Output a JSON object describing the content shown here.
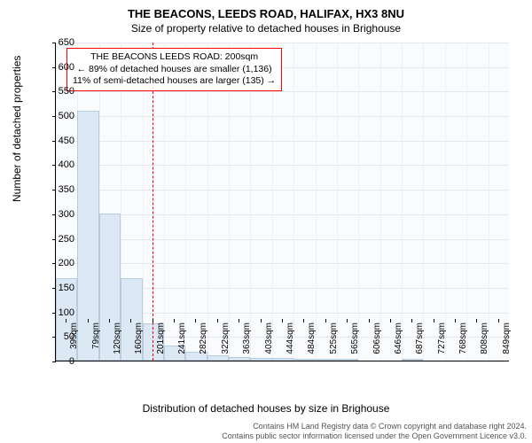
{
  "title_main": "THE BEACONS, LEEDS ROAD, HALIFAX, HX3 8NU",
  "title_sub": "Size of property relative to detached houses in Brighouse",
  "ylabel": "Number of detached properties",
  "xlabel": "Distribution of detached houses by size in Brighouse",
  "chart": {
    "type": "histogram",
    "background_color": "#fafbfd",
    "grid_color": "#e5e7eb",
    "bar_fill": "#dde8f5",
    "bar_border": "#b8cce0",
    "marker_color": "#ff0000",
    "ylim": [
      0,
      650
    ],
    "ytick_step": 50,
    "xticks": [
      "39sqm",
      "79sqm",
      "120sqm",
      "160sqm",
      "201sqm",
      "241sqm",
      "282sqm",
      "322sqm",
      "363sqm",
      "403sqm",
      "444sqm",
      "484sqm",
      "525sqm",
      "565sqm",
      "606sqm",
      "646sqm",
      "687sqm",
      "727sqm",
      "768sqm",
      "808sqm",
      "849sqm"
    ],
    "values": [
      168,
      510,
      300,
      168,
      75,
      30,
      18,
      10,
      8,
      5,
      6,
      4,
      4,
      3,
      0,
      0,
      2,
      0,
      0,
      0,
      0
    ],
    "marker_position_sqm": 200,
    "label_fontsize": 12,
    "tick_fontsize": 11
  },
  "annotation": {
    "line1": "THE BEACONS LEEDS ROAD: 200sqm",
    "line2": "← 89% of detached houses are smaller (1,136)",
    "line3": "11% of semi-detached houses are larger (135) →",
    "border_color": "#ff0000"
  },
  "footer": {
    "line1": "Contains HM Land Registry data © Crown copyright and database right 2024.",
    "line2": "Contains public sector information licensed under the Open Government Licence v3.0."
  }
}
